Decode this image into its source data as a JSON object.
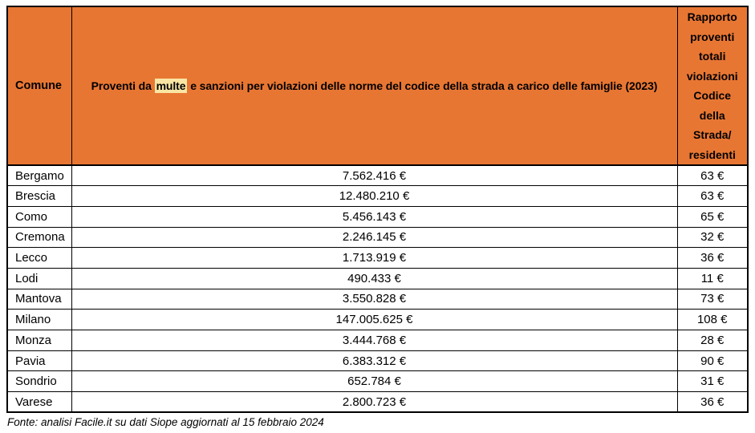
{
  "chart_data": {
    "type": "table",
    "columns": [
      "Comune",
      "Proventi da multe e sanzioni per violazioni delle norme del codice della strada a carico delle famiglie (2023)",
      "Rapporto proventi totali violazioni Codice della Strada/residenti"
    ],
    "rows": [
      [
        "Bergamo",
        "7.562.416 €",
        "63 €"
      ],
      [
        "Brescia",
        "12.480.210 €",
        "63 €"
      ],
      [
        "Como",
        "5.456.143 €",
        "65 €"
      ],
      [
        "Cremona",
        "2.246.145 €",
        "32 €"
      ],
      [
        "Lecco",
        "1.713.919 €",
        "36 €"
      ],
      [
        "Lodi",
        "490.433 €",
        "11 €"
      ],
      [
        "Mantova",
        "3.550.828 €",
        "73 €"
      ],
      [
        "Milano",
        "147.005.625 €",
        "108 €"
      ],
      [
        "Monza",
        "3.444.768 €",
        "28 €"
      ],
      [
        "Pavia",
        "6.383.312 €",
        "90 €"
      ],
      [
        "Sondrio",
        "652.784 €",
        "31 €"
      ],
      [
        "Varese",
        "2.800.723 €",
        "36 €"
      ]
    ],
    "highlighted_term": "multe",
    "source_note": "Fonte: analisi Facile.it su dati Siope aggiornati al 15 febbraio 2024"
  },
  "header_display": {
    "col1": "Comune",
    "col2_prefix": "Proventi da ",
    "col2_highlight": "multe",
    "col2_suffix": " e sanzioni per violazioni delle norme del codice della strada a carico delle famiglie (2023)",
    "col3_multiline": "Rapporto\nproventi\ntotali\nviolazioni\nCodice\ndella\nStrada/\nresidenti"
  },
  "footer": {
    "source": "Fonte: analisi Facile.it su dati Siope aggiornati al 15 febbraio 2024"
  },
  "colors": {
    "header_bg": "#E87633",
    "highlight_bg": "#F9E6A4",
    "border": "#000000",
    "text": "#000000",
    "page_bg": "#FFFFFF"
  }
}
